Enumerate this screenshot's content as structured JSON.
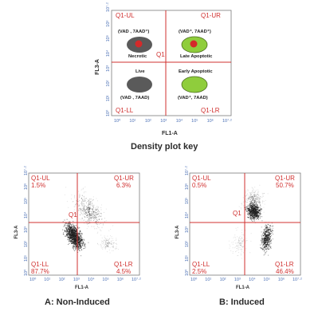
{
  "key": {
    "caption": "Density plot key",
    "quadrants": {
      "ul": "Q1-UL",
      "ur": "Q1-UR",
      "ll": "Q1-LL",
      "lr": "Q1-LR"
    },
    "gate": "Q1",
    "x_axis": "FL1-A",
    "y_axis": "FL3-A",
    "necrotic": {
      "marker": "(VAD , 7AAD⁺)",
      "label": "Necrotic"
    },
    "late": {
      "marker": "(VAD⁺, 7AAD⁺)",
      "label": "Late Apoptotic"
    },
    "live": {
      "marker": "(VAD , 7AAD)",
      "label": "Live"
    },
    "early": {
      "marker": "(VAD⁺, 7AAD)",
      "label": "Early Apoptotic"
    },
    "colors": {
      "necrotic_cell": "#5a5a5a",
      "apoptotic_cell": "#8fcd3c",
      "nucleus": "#d42a2a",
      "gate": "#d0302f"
    }
  },
  "x_ticks": [
    "10⁰",
    "10¹",
    "10²",
    "10³",
    "10⁴",
    "10⁵",
    "10⁶",
    "10⁷·²"
  ],
  "y_ticks": [
    "10⁰",
    "10¹",
    "10²",
    "10³",
    "10⁴",
    "10⁵",
    "10⁶",
    "10⁷·²"
  ],
  "plots": {
    "a": {
      "caption": "A: Non-Induced",
      "x_axis": "FL1-A",
      "y_axis": "FL3-A",
      "gate": "Q1",
      "ul": {
        "name": "Q1-UL",
        "value": "1.5%"
      },
      "ur": {
        "name": "Q1-UR",
        "value": "6.3%"
      },
      "ll": {
        "name": "Q1-LL",
        "value": "87.7%"
      },
      "lr": {
        "name": "Q1-LR",
        "value": "4.5%"
      }
    },
    "b": {
      "caption": "B: Induced",
      "x_axis": "FL1-A",
      "y_axis": "FL3-A",
      "gate": "Q1",
      "ul": {
        "name": "Q1-UL",
        "value": "0.5%"
      },
      "ur": {
        "name": "Q1-UR",
        "value": "50.7%"
      },
      "ll": {
        "name": "Q1-LL",
        "value": "2.5%"
      },
      "lr": {
        "name": "Q1-LR",
        "value": "46.4%"
      }
    }
  }
}
